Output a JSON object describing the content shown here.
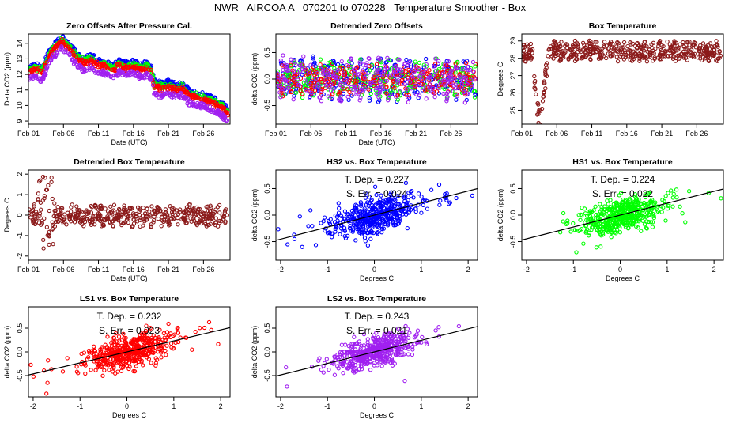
{
  "figure": {
    "title": "NWR   AIRCOA A   070201 to 070228   Temperature Smoother - Box",
    "colors": {
      "HS2": "#0000ff",
      "HS1": "#00ff00",
      "LS1": "#ff0000",
      "LS2": "#a020f0",
      "box": "#8b1a1a",
      "fit": "#000000"
    }
  },
  "chart_data": [
    {
      "id": "zero-offsets",
      "type": "scatter",
      "title": "Zero Offsets After Pressure Cal.",
      "xlabel": "Date (UTC)",
      "ylabel": "Delta CO2 (ppm)",
      "xlim": [
        1,
        29.8
      ],
      "ylim": [
        8.8,
        14.6
      ],
      "x_ticks": [
        1,
        6,
        11,
        16,
        21,
        26
      ],
      "x_tick_labels": [
        "Feb 01",
        "Feb 06",
        "Feb 11",
        "Feb 16",
        "Feb 21",
        "Feb 26"
      ],
      "y_ticks": [
        9,
        10,
        11,
        12,
        13,
        14
      ],
      "y_tick_labels": [
        "9",
        "10",
        "11",
        "12",
        "13",
        "14"
      ],
      "base_curve": [
        [
          1,
          12.2
        ],
        [
          2,
          12.3
        ],
        [
          3,
          12.1
        ],
        [
          4,
          13.2
        ],
        [
          5,
          13.8
        ],
        [
          5.8,
          14.1
        ],
        [
          6.5,
          13.8
        ],
        [
          8,
          13.0
        ],
        [
          9,
          12.7
        ],
        [
          10,
          12.9
        ],
        [
          11,
          12.6
        ],
        [
          12,
          12.5
        ],
        [
          13,
          12.2
        ],
        [
          14,
          12.6
        ],
        [
          15,
          12.4
        ],
        [
          16,
          12.5
        ],
        [
          17,
          12.3
        ],
        [
          18,
          12.4
        ],
        [
          18.5,
          12.2
        ],
        [
          19,
          11.2
        ],
        [
          20,
          11.1
        ],
        [
          21,
          11.2
        ],
        [
          22,
          11.0
        ],
        [
          23,
          11.1
        ],
        [
          24,
          10.6
        ],
        [
          25,
          10.5
        ],
        [
          26,
          10.4
        ],
        [
          27,
          10.2
        ],
        [
          28,
          10.0
        ],
        [
          29,
          9.7
        ],
        [
          29.6,
          9.4
        ]
      ],
      "series": [
        {
          "name": "HS2",
          "offset": 0.3
        },
        {
          "name": "HS1",
          "offset": 0.15
        },
        {
          "name": "LS1",
          "offset": 0.0
        },
        {
          "name": "LS2",
          "offset": -0.45
        }
      ]
    },
    {
      "id": "detrended-zero-offsets",
      "type": "scatter",
      "title": "Detrended Zero Offsets",
      "xlabel": "Date (UTC)",
      "ylabel": "delta CO2 (ppm)",
      "xlim": [
        1,
        29.8
      ],
      "ylim": [
        -0.85,
        0.85
      ],
      "x_ticks": [
        1,
        6,
        11,
        16,
        21,
        26
      ],
      "x_tick_labels": [
        "Feb 01",
        "Feb 06",
        "Feb 11",
        "Feb 16",
        "Feb 21",
        "Feb 26"
      ],
      "y_ticks": [
        -0.5,
        0.0,
        0.5
      ],
      "y_tick_labels": [
        "-0.5",
        "0.0",
        "0.5"
      ],
      "series": [
        {
          "name": "HS2",
          "spread": 0.3
        },
        {
          "name": "HS1",
          "spread": 0.26
        },
        {
          "name": "LS1",
          "spread": 0.22
        },
        {
          "name": "LS2",
          "spread": 0.3
        }
      ]
    },
    {
      "id": "box-temperature",
      "type": "scatter",
      "title": "Box Temperature",
      "xlabel": "",
      "ylabel": "Degrees C",
      "xlim": [
        1,
        29.8
      ],
      "ylim": [
        24.2,
        29.4
      ],
      "x_ticks": [
        1,
        6,
        11,
        16,
        21,
        26
      ],
      "x_tick_labels": [
        "Feb 01",
        "Feb 06",
        "Feb 11",
        "Feb 16",
        "Feb 21",
        "Feb 26"
      ],
      "y_ticks": [
        25,
        26,
        27,
        28,
        29
      ],
      "y_tick_labels": [
        "25",
        "26",
        "27",
        "28",
        "29"
      ],
      "base_curve": [
        [
          1,
          28.3
        ],
        [
          2.5,
          28.3
        ],
        [
          3,
          25.8
        ],
        [
          3.5,
          24.4
        ],
        [
          4.5,
          27.2
        ],
        [
          5,
          28.4
        ],
        [
          29.5,
          28.4
        ]
      ],
      "series": [
        {
          "name": "Box",
          "spread": 0.45
        }
      ]
    },
    {
      "id": "detrended-box-temperature",
      "type": "scatter",
      "title": "Detrended Box Temperature",
      "xlabel": "Date (UTC)",
      "ylabel": "Degrees C",
      "xlim": [
        1,
        29.8
      ],
      "ylim": [
        -2.2,
        2.2
      ],
      "x_ticks": [
        1,
        6,
        11,
        16,
        21,
        26
      ],
      "x_tick_labels": [
        "Feb 01",
        "Feb 06",
        "Feb 11",
        "Feb 16",
        "Feb 21",
        "Feb 26"
      ],
      "y_ticks": [
        -2,
        -1,
        0,
        1,
        2
      ],
      "y_tick_labels": [
        "-2",
        "-1",
        "0",
        "1",
        "2"
      ],
      "series": [
        {
          "name": "Box",
          "spread": 0.4
        }
      ]
    },
    {
      "id": "hs2-vs-box",
      "type": "scatter",
      "title": "HS2 vs. Box Temperature",
      "xlabel": "Degrees C",
      "ylabel": "delta CO2 (ppm)",
      "xlim": [
        -2.1,
        2.2
      ],
      "ylim": [
        -0.85,
        0.85
      ],
      "x_ticks": [
        -2,
        -1,
        0,
        1,
        2
      ],
      "x_tick_labels": [
        "-2",
        "-1",
        "0",
        "1",
        "2"
      ],
      "y_ticks": [
        -0.5,
        0.0,
        0.5
      ],
      "y_tick_labels": [
        "-0.5",
        "0.0",
        "0.5"
      ],
      "series": [
        {
          "name": "HS2"
        }
      ],
      "fit": {
        "slope": 0.227,
        "intercept": 0.0
      },
      "annotation": {
        "t_dep": "T. Dep. =  0.227",
        "s_err": "S. Err. =  0.024"
      }
    },
    {
      "id": "hs1-vs-box",
      "type": "scatter",
      "title": "HS1 vs. Box Temperature",
      "xlabel": "Degrees C",
      "ylabel": "delta CO2 (ppm)",
      "xlim": [
        -2.1,
        2.2
      ],
      "ylim": [
        -0.85,
        0.85
      ],
      "x_ticks": [
        -2,
        -1,
        0,
        1,
        2
      ],
      "x_tick_labels": [
        "-2",
        "-1",
        "0",
        "1",
        "2"
      ],
      "y_ticks": [
        -0.5,
        0.0,
        0.5
      ],
      "y_tick_labels": [
        "-0.5",
        "0.0",
        "0.5"
      ],
      "series": [
        {
          "name": "HS1"
        }
      ],
      "fit": {
        "slope": 0.224,
        "intercept": 0.0
      },
      "annotation": {
        "t_dep": "T. Dep. =  0.224",
        "s_err": "S. Err. =  0.022"
      }
    },
    {
      "id": "ls1-vs-box",
      "type": "scatter",
      "title": "LS1 vs. Box Temperature",
      "xlabel": "Degrees C",
      "ylabel": "delta CO2 (ppm)",
      "xlim": [
        -2.1,
        2.2
      ],
      "ylim": [
        -0.95,
        0.95
      ],
      "x_ticks": [
        -2,
        -1,
        0,
        1,
        2
      ],
      "x_tick_labels": [
        "-2",
        "-1",
        "0",
        "1",
        "2"
      ],
      "y_ticks": [
        -0.5,
        0.0,
        0.5
      ],
      "y_tick_labels": [
        "-0.5",
        "0.0",
        "0.5"
      ],
      "series": [
        {
          "name": "LS1"
        }
      ],
      "fit": {
        "slope": 0.232,
        "intercept": 0.0
      },
      "annotation": {
        "t_dep": "T. Dep. =  0.232",
        "s_err": "S. Err. =  0.023"
      }
    },
    {
      "id": "ls2-vs-box",
      "type": "scatter",
      "title": "LS2 vs. Box Temperature",
      "xlabel": "Degrees C",
      "ylabel": "delta CO2 (ppm)",
      "xlim": [
        -2.1,
        2.2
      ],
      "ylim": [
        -0.95,
        0.95
      ],
      "x_ticks": [
        -2,
        -1,
        0,
        1,
        2
      ],
      "x_tick_labels": [
        "-2",
        "-1",
        "0",
        "1",
        "2"
      ],
      "y_ticks": [
        -0.5,
        0.0,
        0.5
      ],
      "y_tick_labels": [
        "-0.5",
        "0.0",
        "0.5"
      ],
      "series": [
        {
          "name": "LS2"
        }
      ],
      "fit": {
        "slope": 0.243,
        "intercept": 0.0
      },
      "annotation": {
        "t_dep": "T. Dep. =  0.243",
        "s_err": "S. Err. =  0.021"
      }
    }
  ]
}
